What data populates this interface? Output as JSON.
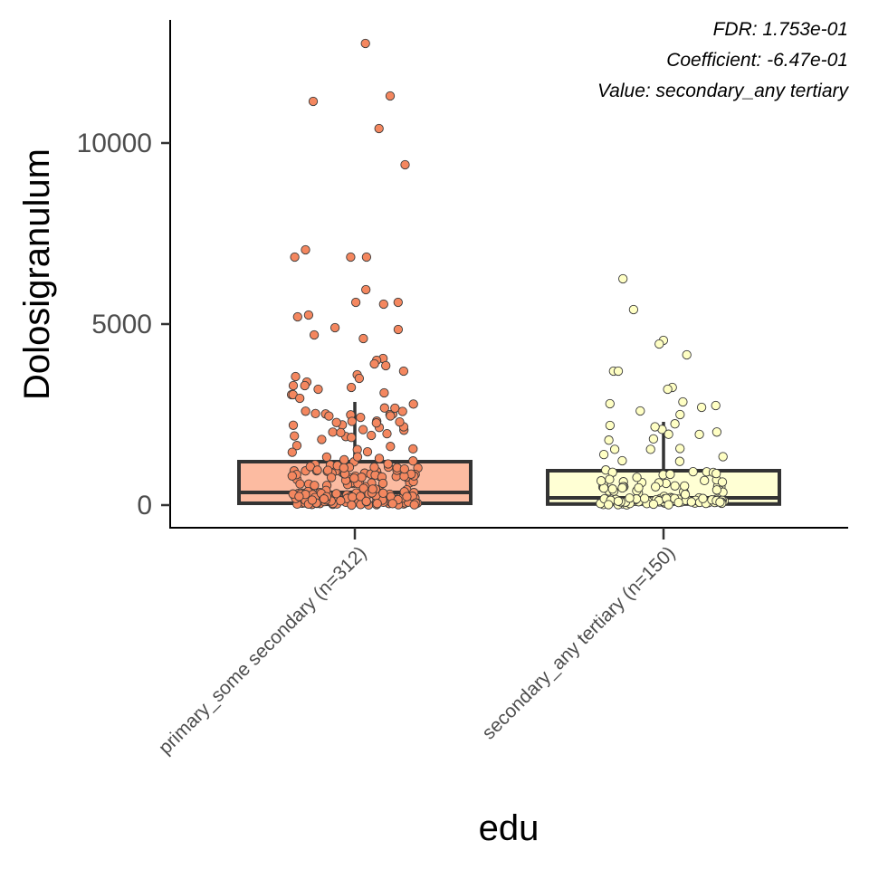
{
  "chart_data": {
    "type": "box",
    "xlabel": "edu",
    "ylabel": "Dolosigranulum",
    "yticks": [
      0,
      5000,
      10000
    ],
    "ylim": [
      -600,
      13400
    ],
    "legend": "none",
    "grid": false,
    "annotations": [
      "FDR: 1.753e-01",
      "Coefficient: -6.47e-01",
      "Value: secondary_any tertiary"
    ],
    "categories": [
      "primary_some secondary (n=312)",
      "secondary_any tertiary (n=150)"
    ],
    "boxes": [
      {
        "category": "primary_some secondary (n=312)",
        "color": "#fcbba1",
        "point_color": "#f4875f",
        "q1": 50,
        "median": 350,
        "q3": 1200,
        "whisker_low": 0,
        "whisker_high": 2850,
        "outliers": [
          12750,
          11300,
          11150,
          10400,
          9400,
          7050,
          6850,
          6850,
          6850,
          5950,
          5600,
          5600,
          5550,
          5250,
          5200,
          4900,
          4850,
          4700,
          4600,
          4050,
          4000,
          3900,
          3850,
          3700,
          3600,
          3550,
          3500,
          3400,
          3300,
          3300,
          3250,
          3200,
          3100,
          3050,
          3050,
          2950
        ]
      },
      {
        "category": "secondary_any tertiary (n=150)",
        "color": "#ffffd4",
        "point_color": "#ffffc4",
        "q1": 30,
        "median": 200,
        "q3": 950,
        "whisker_low": 0,
        "whisker_high": 2300,
        "outliers": [
          6250,
          5400,
          4550,
          4450,
          4150,
          3700,
          3700,
          3250,
          3200,
          2850,
          2800,
          2750,
          2700,
          2600,
          2500
        ]
      }
    ]
  }
}
